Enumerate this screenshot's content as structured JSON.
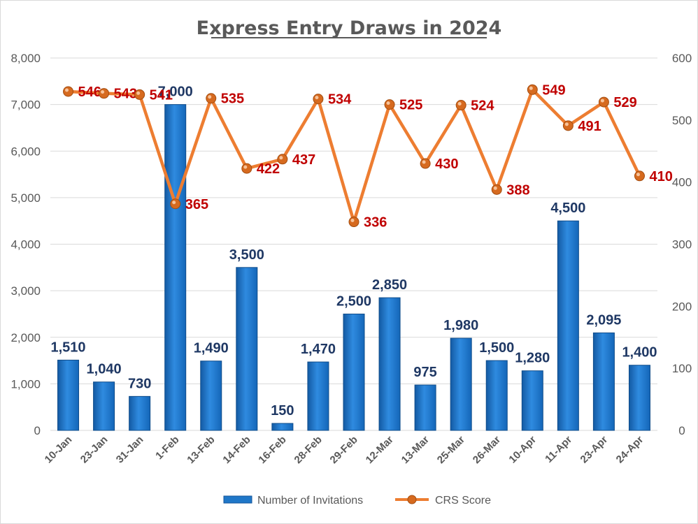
{
  "chart_data": {
    "type": "bar",
    "title": "Express Entry Draws in 2024",
    "categories": [
      "10-Jan",
      "23-Jan",
      "31-Jan",
      "1-Feb",
      "13-Feb",
      "14-Feb",
      "16-Feb",
      "28-Feb",
      "29-Feb",
      "12-Mar",
      "13-Mar",
      "25-Mar",
      "26-Mar",
      "10-Apr",
      "11-Apr",
      "23-Apr",
      "24-Apr"
    ],
    "series": [
      {
        "name": "Number of Invitations",
        "type": "bar",
        "axis": "left",
        "color": "#1f77c8",
        "values": [
          1510,
          1040,
          730,
          7000,
          1490,
          3500,
          150,
          1470,
          2500,
          2850,
          975,
          1980,
          1500,
          1280,
          4500,
          2095,
          1400
        ],
        "labels": [
          "1,510",
          "1,040",
          "730",
          "7,000",
          "1,490",
          "3,500",
          "150",
          "1,470",
          "2,500",
          "2,850",
          "975",
          "1,980",
          "1,500",
          "1,280",
          "4,500",
          "2,095",
          "1,400"
        ]
      },
      {
        "name": "CRS Score",
        "type": "line",
        "axis": "right",
        "color": "#ed7d31",
        "values": [
          546,
          543,
          541,
          365,
          535,
          422,
          437,
          534,
          336,
          525,
          430,
          524,
          388,
          549,
          491,
          529,
          410
        ]
      }
    ],
    "y_left": {
      "min": 0,
      "max": 8000,
      "ticks": [
        "0",
        "1,000",
        "2,000",
        "3,000",
        "4,000",
        "5,000",
        "6,000",
        "7,000",
        "8,000"
      ]
    },
    "y_right": {
      "min": 0,
      "max": 600,
      "ticks": [
        "0",
        "100",
        "200",
        "300",
        "400",
        "500",
        "600"
      ]
    },
    "grid": true,
    "legend": "bottom"
  }
}
